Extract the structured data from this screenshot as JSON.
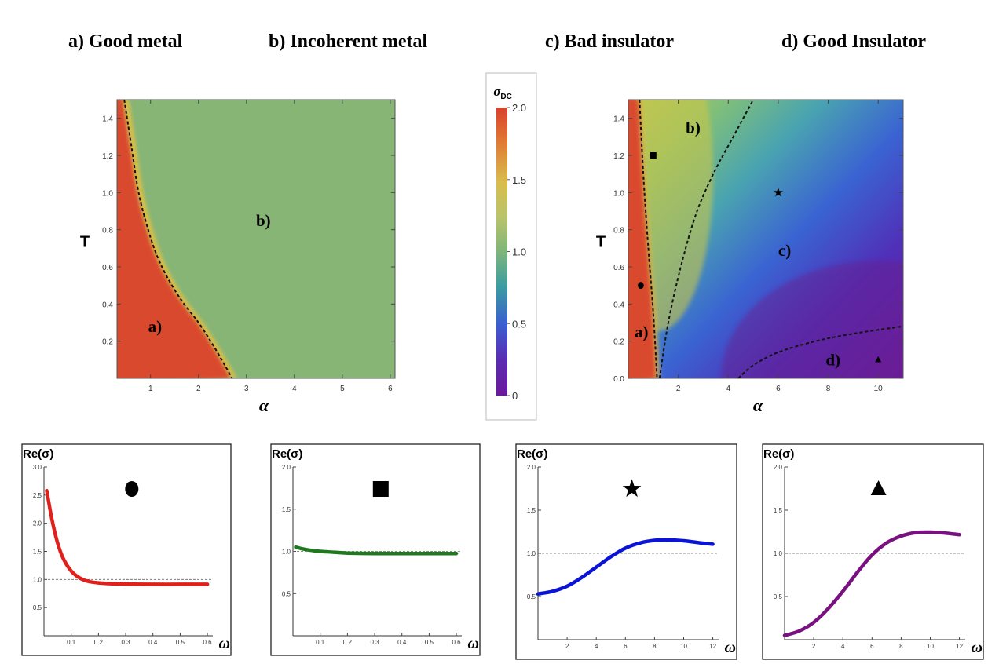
{
  "titles": {
    "a": "a) Good metal",
    "b": "b) Incoherent metal",
    "c": "c) Bad insulator",
    "d": "d) Good Insulator"
  },
  "colors": {
    "metal_red": "#d94a2f",
    "incoherent_green": "#86b576",
    "curve_red": "#e0201a",
    "curve_green": "#1f7a1f",
    "curve_blue": "#0a14d6",
    "curve_purple": "#7a1180"
  },
  "chart_data": [
    {
      "id": "phase_left",
      "type": "heatmap",
      "xlabel": "α",
      "ylabel": "T",
      "xlim": [
        0.3,
        6.1
      ],
      "ylim": [
        0,
        1.5
      ],
      "xticks": [
        1,
        2,
        3,
        4,
        5,
        6
      ],
      "yticks": [
        0.2,
        0.4,
        0.6,
        0.8,
        1.0,
        1.2,
        1.4
      ],
      "boundary": {
        "alpha": [
          0.45,
          0.6,
          0.75,
          0.95,
          1.15,
          1.4,
          1.7,
          2.0,
          2.3,
          2.55,
          2.7
        ],
        "T": [
          1.5,
          1.25,
          1.0,
          0.8,
          0.65,
          0.52,
          0.4,
          0.3,
          0.18,
          0.07,
          0.0
        ]
      },
      "regions": [
        {
          "label": "a)",
          "alpha": 0.95,
          "T": 0.25
        },
        {
          "label": "b)",
          "alpha": 3.2,
          "T": 0.82
        }
      ]
    },
    {
      "id": "colorbar",
      "type": "heatmap",
      "title": "σ",
      "title_sub": "DC",
      "range": [
        0,
        2.0
      ],
      "ticks": [
        "2.0",
        "1.5",
        "1.0",
        "0.5",
        "0"
      ]
    },
    {
      "id": "phase_right",
      "type": "heatmap",
      "xlabel": "α",
      "ylabel": "T",
      "xlim": [
        0,
        11
      ],
      "ylim": [
        0,
        1.5
      ],
      "xticks": [
        2,
        4,
        6,
        8,
        10
      ],
      "yticks": [
        0.0,
        0.2,
        0.4,
        0.6,
        0.8,
        1.0,
        1.2,
        1.4
      ],
      "boundary_1": {
        "alpha": [
          0.45,
          0.6,
          0.8,
          1.0,
          1.15
        ],
        "T": [
          1.5,
          1.1,
          0.7,
          0.35,
          0.0
        ]
      },
      "boundary_2": {
        "alpha": [
          1.25,
          1.6,
          2.1,
          2.7,
          3.4,
          4.2,
          5.0
        ],
        "T": [
          0.0,
          0.3,
          0.6,
          0.88,
          1.1,
          1.3,
          1.5
        ]
      },
      "boundary_3": {
        "alpha": [
          4.4,
          5.0,
          6.0,
          7.5,
          9.0,
          11.0
        ],
        "T": [
          0.0,
          0.07,
          0.14,
          0.2,
          0.24,
          0.28
        ]
      },
      "regions": [
        {
          "label": "a)",
          "alpha": 0.25,
          "T": 0.22
        },
        {
          "label": "b)",
          "alpha": 2.3,
          "T": 1.32
        },
        {
          "label": "c)",
          "alpha": 6.0,
          "T": 0.66
        },
        {
          "label": "d)",
          "alpha": 7.9,
          "T": 0.07
        }
      ],
      "markers": [
        {
          "shape": "circle",
          "alpha": 0.5,
          "T": 0.5
        },
        {
          "shape": "square",
          "alpha": 1.0,
          "T": 1.2
        },
        {
          "shape": "star",
          "alpha": 6.0,
          "T": 1.0
        },
        {
          "shape": "triangle",
          "alpha": 10.0,
          "T": 0.1
        }
      ]
    },
    {
      "id": "cond_a",
      "type": "line",
      "ylabel": "Re(σ)",
      "xlabel": "ω",
      "xlim": [
        0,
        0.62
      ],
      "ylim": [
        0,
        3.0
      ],
      "xticks": [
        "0.1",
        "0.2",
        "0.3",
        "0.4",
        "0.5",
        "0.6"
      ],
      "yticks": [
        "0.5",
        "1.0",
        "1.5",
        "2.0",
        "2.5",
        "3.0"
      ],
      "reference": 1.0,
      "marker": "circle",
      "series": [
        {
          "name": "Re(σ)",
          "x": [
            0.01,
            0.03,
            0.05,
            0.07,
            0.1,
            0.13,
            0.16,
            0.2,
            0.25,
            0.3,
            0.4,
            0.5,
            0.6
          ],
          "y": [
            2.58,
            2.05,
            1.65,
            1.38,
            1.15,
            1.03,
            0.97,
            0.94,
            0.925,
            0.92,
            0.915,
            0.915,
            0.915
          ]
        }
      ]
    },
    {
      "id": "cond_b",
      "type": "line",
      "ylabel": "Re(σ)",
      "xlabel": "ω",
      "xlim": [
        0,
        0.62
      ],
      "ylim": [
        0,
        2.0
      ],
      "xticks": [
        "0.1",
        "0.2",
        "0.3",
        "0.4",
        "0.5",
        "0.6"
      ],
      "yticks": [
        "0.5",
        "1.0",
        "1.5",
        "2.0"
      ],
      "reference": 1.0,
      "marker": "square",
      "series": [
        {
          "name": "Re(σ)",
          "x": [
            0.01,
            0.05,
            0.1,
            0.15,
            0.2,
            0.3,
            0.4,
            0.5,
            0.6
          ],
          "y": [
            1.05,
            1.02,
            1.0,
            0.99,
            0.98,
            0.975,
            0.975,
            0.975,
            0.975
          ]
        }
      ]
    },
    {
      "id": "cond_c",
      "type": "line",
      "ylabel": "Re(σ)",
      "xlabel": "ω",
      "xlim": [
        0,
        12.4
      ],
      "ylim": [
        0,
        2.0
      ],
      "xticks": [
        "2",
        "4",
        "6",
        "8",
        "10",
        "12"
      ],
      "yticks": [
        "0.5",
        "1.0",
        "1.5",
        "2.0"
      ],
      "reference": 1.0,
      "marker": "star",
      "series": [
        {
          "name": "Re(σ)",
          "x": [
            0,
            1,
            2,
            3,
            4,
            5,
            6,
            7,
            8,
            9,
            10,
            11,
            12
          ],
          "y": [
            0.53,
            0.56,
            0.62,
            0.72,
            0.84,
            0.96,
            1.06,
            1.12,
            1.15,
            1.155,
            1.145,
            1.125,
            1.105
          ]
        }
      ]
    },
    {
      "id": "cond_d",
      "type": "line",
      "ylabel": "Re(σ)",
      "xlabel": "ω",
      "xlim": [
        0,
        12.4
      ],
      "ylim": [
        0,
        2.0
      ],
      "xticks": [
        "2",
        "4",
        "6",
        "8",
        "10",
        "12"
      ],
      "yticks": [
        "0.5",
        "1.0",
        "1.5",
        "2.0"
      ],
      "reference": 1.0,
      "marker": "triangle",
      "series": [
        {
          "name": "Re(σ)",
          "x": [
            0,
            1,
            2,
            3,
            4,
            5,
            6,
            7,
            8,
            9,
            10,
            11,
            12
          ],
          "y": [
            0.05,
            0.1,
            0.2,
            0.36,
            0.56,
            0.78,
            0.98,
            1.12,
            1.2,
            1.24,
            1.245,
            1.235,
            1.215
          ]
        }
      ]
    }
  ]
}
